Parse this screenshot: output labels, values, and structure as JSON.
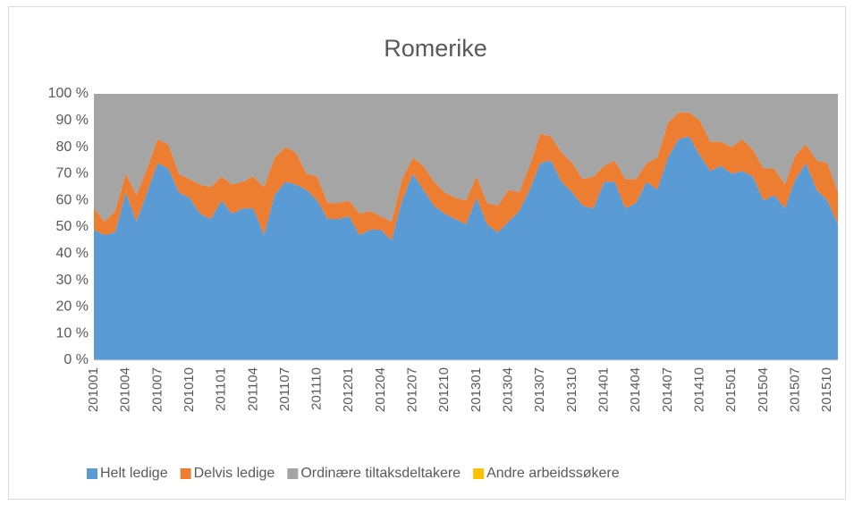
{
  "chart_data": {
    "type": "stacked_area_100",
    "title": "Romerike",
    "categories": [
      "201001",
      null,
      null,
      "201004",
      null,
      null,
      "201007",
      null,
      null,
      "201010",
      null,
      null,
      "201101",
      null,
      null,
      "201104",
      null,
      null,
      "201107",
      null,
      null,
      "201110",
      null,
      null,
      "201201",
      null,
      null,
      "201204",
      null,
      null,
      "201207",
      null,
      null,
      "201210",
      null,
      null,
      "201301",
      null,
      null,
      "201304",
      null,
      null,
      "201307",
      null,
      null,
      "201310",
      null,
      null,
      "201401",
      null,
      null,
      "201404",
      null,
      null,
      "201407",
      null,
      null,
      "201410",
      null,
      null,
      "201501",
      null,
      null,
      "201504",
      null,
      null,
      "201507",
      null,
      null,
      "201510",
      null
    ],
    "series": [
      {
        "name": "Helt ledige",
        "color": "#5b9bd5",
        "values": [
          49,
          47,
          48,
          63,
          52,
          63,
          74,
          72,
          63,
          61,
          55,
          53,
          60,
          55,
          57,
          57,
          47,
          62,
          67,
          66,
          64,
          60,
          53,
          53,
          54,
          47,
          49,
          49,
          45,
          60,
          70,
          64,
          58,
          55,
          53,
          51,
          61,
          51,
          48,
          52,
          56,
          64,
          74,
          75,
          67,
          63,
          58,
          57,
          67,
          67,
          57,
          59,
          67,
          64,
          76,
          83,
          84,
          77,
          71,
          73,
          70,
          71,
          69,
          60,
          62,
          57,
          68,
          74,
          64,
          60,
          51
        ]
      },
      {
        "name": "Delvis ledige",
        "color": "#ed7d31",
        "values": [
          8,
          5,
          8,
          7,
          10,
          9,
          9,
          9,
          7,
          7,
          11,
          12,
          9,
          11,
          10,
          12,
          18,
          14,
          13,
          12,
          6,
          9,
          6,
          6,
          6,
          8,
          7,
          5,
          7,
          8,
          6,
          9,
          9,
          8,
          8,
          9,
          8,
          8,
          10,
          12,
          7,
          9,
          11,
          9,
          11,
          11,
          10,
          12,
          6,
          8,
          11,
          9,
          7,
          12,
          13,
          10,
          9,
          13,
          11,
          9,
          10,
          12,
          10,
          12,
          10,
          9,
          9,
          7,
          11,
          14,
          12
        ]
      },
      {
        "name": "Ordinære tiltaksdeltakere",
        "color": "#a5a5a5",
        "values": [
          43,
          48,
          44,
          30,
          38,
          28,
          17,
          19,
          30,
          32,
          34,
          35,
          31,
          34,
          33,
          31,
          35,
          24,
          20,
          22,
          30,
          31,
          41,
          41,
          40,
          45,
          44,
          46,
          48,
          32,
          24,
          27,
          33,
          37,
          39,
          40,
          31,
          41,
          42,
          36,
          37,
          27,
          15,
          16,
          22,
          26,
          32,
          31,
          27,
          25,
          32,
          32,
          26,
          24,
          11,
          7,
          7,
          10,
          18,
          18,
          20,
          17,
          21,
          28,
          28,
          34,
          23,
          19,
          25,
          26,
          37
        ]
      },
      {
        "name": "Andre arbeidssøkere",
        "color": "#ffc000",
        "values": [
          0,
          0,
          0,
          0,
          0,
          0,
          0,
          0,
          0,
          0,
          0,
          0,
          0,
          0,
          0,
          0,
          0,
          0,
          0,
          0,
          0,
          0,
          0,
          0,
          0,
          0,
          0,
          0,
          0,
          0,
          0,
          0,
          0,
          0,
          0,
          0,
          0,
          0,
          0,
          0,
          0,
          0,
          0,
          0,
          0,
          0,
          0,
          0,
          0,
          0,
          0,
          0,
          0,
          0,
          0,
          0,
          0,
          0,
          0,
          0,
          0,
          0,
          0,
          0,
          0,
          0,
          0,
          0,
          0,
          0,
          0
        ]
      }
    ],
    "ylim": [
      0,
      100
    ],
    "yticks": [
      {
        "value": 0,
        "label": "0 %"
      },
      {
        "value": 10,
        "label": "10 %"
      },
      {
        "value": 20,
        "label": "20 %"
      },
      {
        "value": 30,
        "label": "30 %"
      },
      {
        "value": 40,
        "label": "40 %"
      },
      {
        "value": 50,
        "label": "50 %"
      },
      {
        "value": 60,
        "label": "60 %"
      },
      {
        "value": 70,
        "label": "70 %"
      },
      {
        "value": 80,
        "label": "80 %"
      },
      {
        "value": 90,
        "label": "90 %"
      },
      {
        "value": 100,
        "label": "100 %"
      }
    ],
    "legend": "bottom"
  }
}
